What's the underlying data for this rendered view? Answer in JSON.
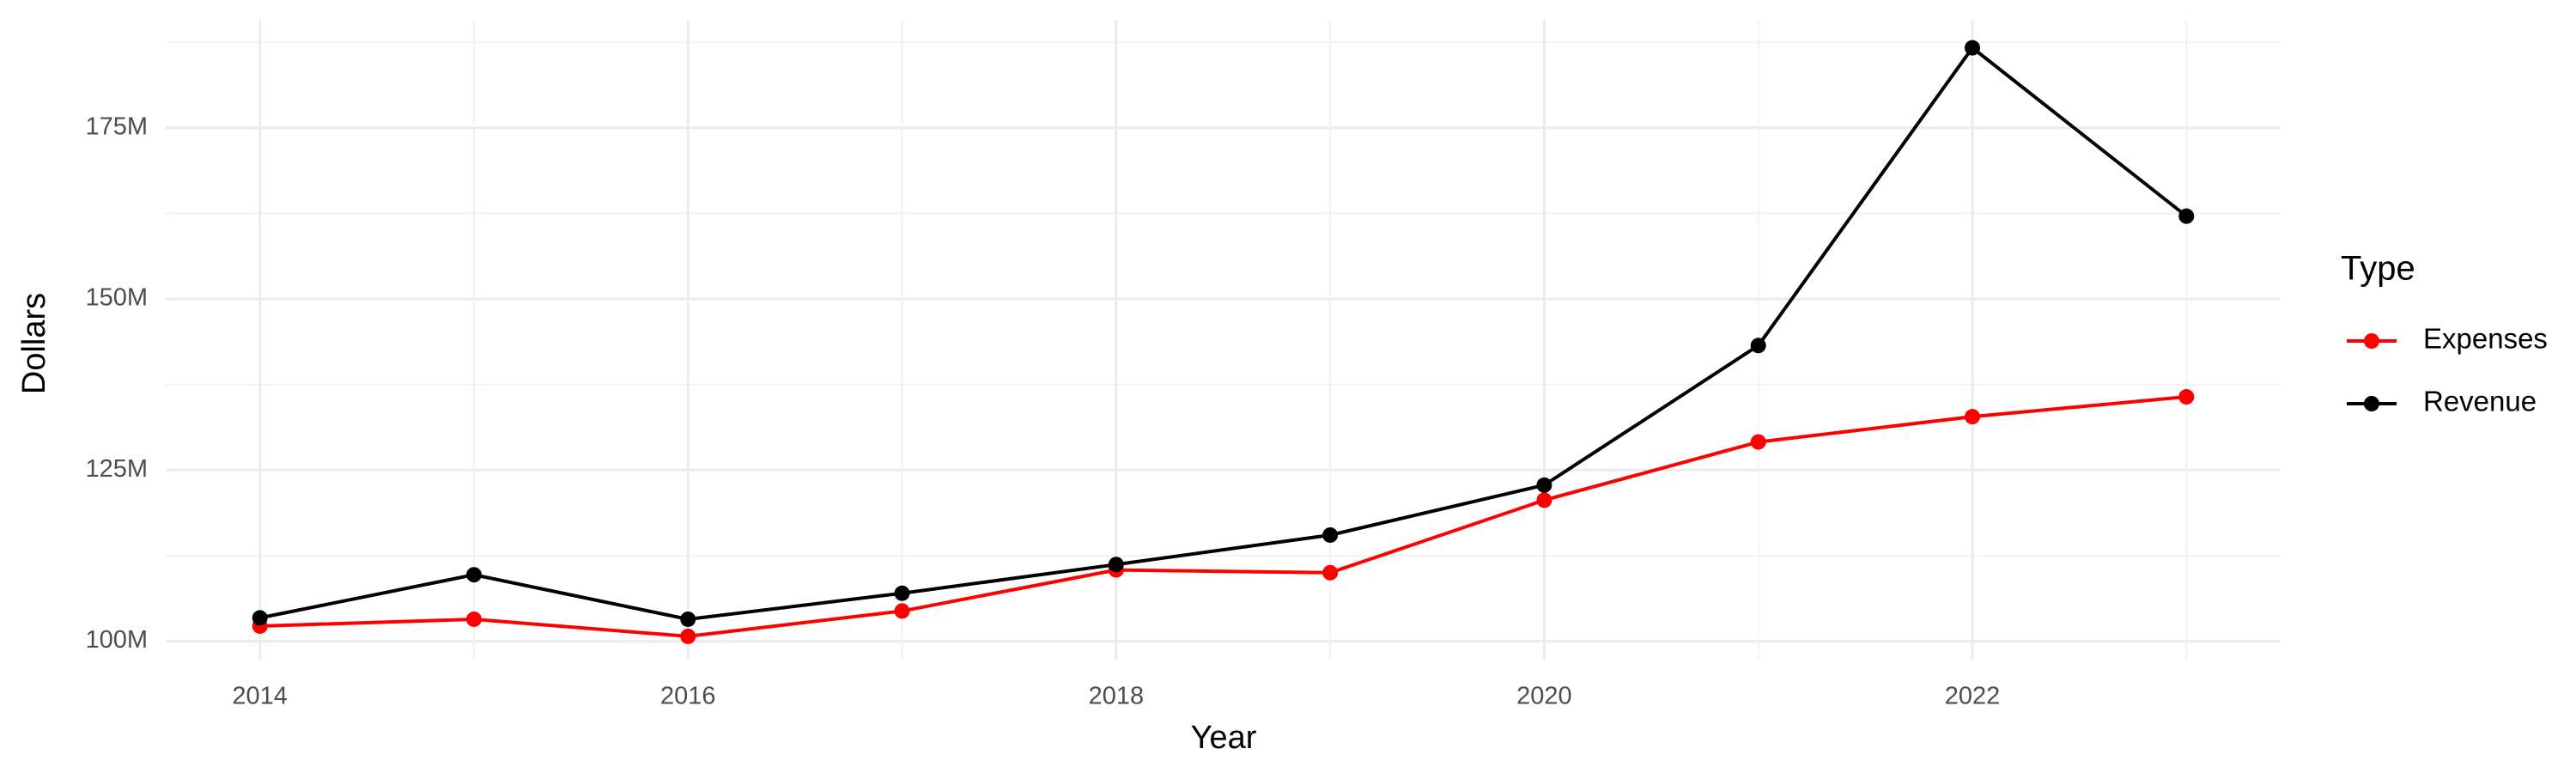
{
  "chart_data": {
    "type": "line",
    "x_label": "Year",
    "y_label": "Dollars",
    "legend_title": "Type",
    "x": [
      2014,
      2015,
      2016,
      2017,
      2018,
      2019,
      2020,
      2021,
      2022,
      2023
    ],
    "series": [
      {
        "name": "Expenses",
        "color": "#ff0000",
        "values": [
          102200000,
          103200000,
          100700000,
          104400000,
          110400000,
          110000000,
          120600000,
          129100000,
          132800000,
          135700000
        ]
      },
      {
        "name": "Revenue",
        "color": "#000000",
        "values": [
          103400000,
          109700000,
          103200000,
          107000000,
          111200000,
          115500000,
          122800000,
          143200000,
          186700000,
          162100000
        ]
      }
    ],
    "xlim": [
      2013.56,
      2023.44
    ],
    "xticks": [
      2014,
      2016,
      2018,
      2020,
      2022
    ],
    "ylim": [
      97300000,
      190800000
    ],
    "yticks": [
      {
        "value": 100000000,
        "label": "100M"
      },
      {
        "value": 125000000,
        "label": "125M"
      },
      {
        "value": 150000000,
        "label": "150M"
      },
      {
        "value": 175000000,
        "label": "175M"
      }
    ],
    "grid": true,
    "legend": "right"
  }
}
